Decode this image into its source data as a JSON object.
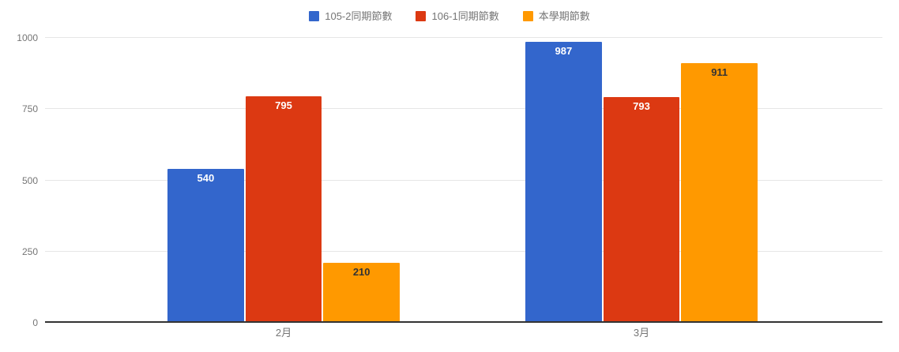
{
  "chart_data": {
    "type": "bar",
    "title": "",
    "categories": [
      "2月",
      "3月"
    ],
    "series": [
      {
        "name": "105-2同期節數",
        "color": "#3366CC",
        "label_color": "#ffffff",
        "values": [
          540,
          987
        ]
      },
      {
        "name": "106-1同期節數",
        "color": "#DC3912",
        "label_color": "#ffffff",
        "values": [
          795,
          793
        ]
      },
      {
        "name": "本學期節數",
        "color": "#FF9900",
        "label_color": "#333333",
        "values": [
          210,
          911
        ]
      }
    ],
    "y_axis": {
      "min": 0,
      "max": 1000,
      "ticks": [
        0,
        250,
        500,
        750,
        1000
      ]
    },
    "legend_position": "top-center",
    "grid": true,
    "colors": {
      "gridline": "#e6e6e6",
      "baseline": "#333333",
      "axis_text": "#757575",
      "legend_text": "#757575",
      "background": "#ffffff"
    }
  }
}
